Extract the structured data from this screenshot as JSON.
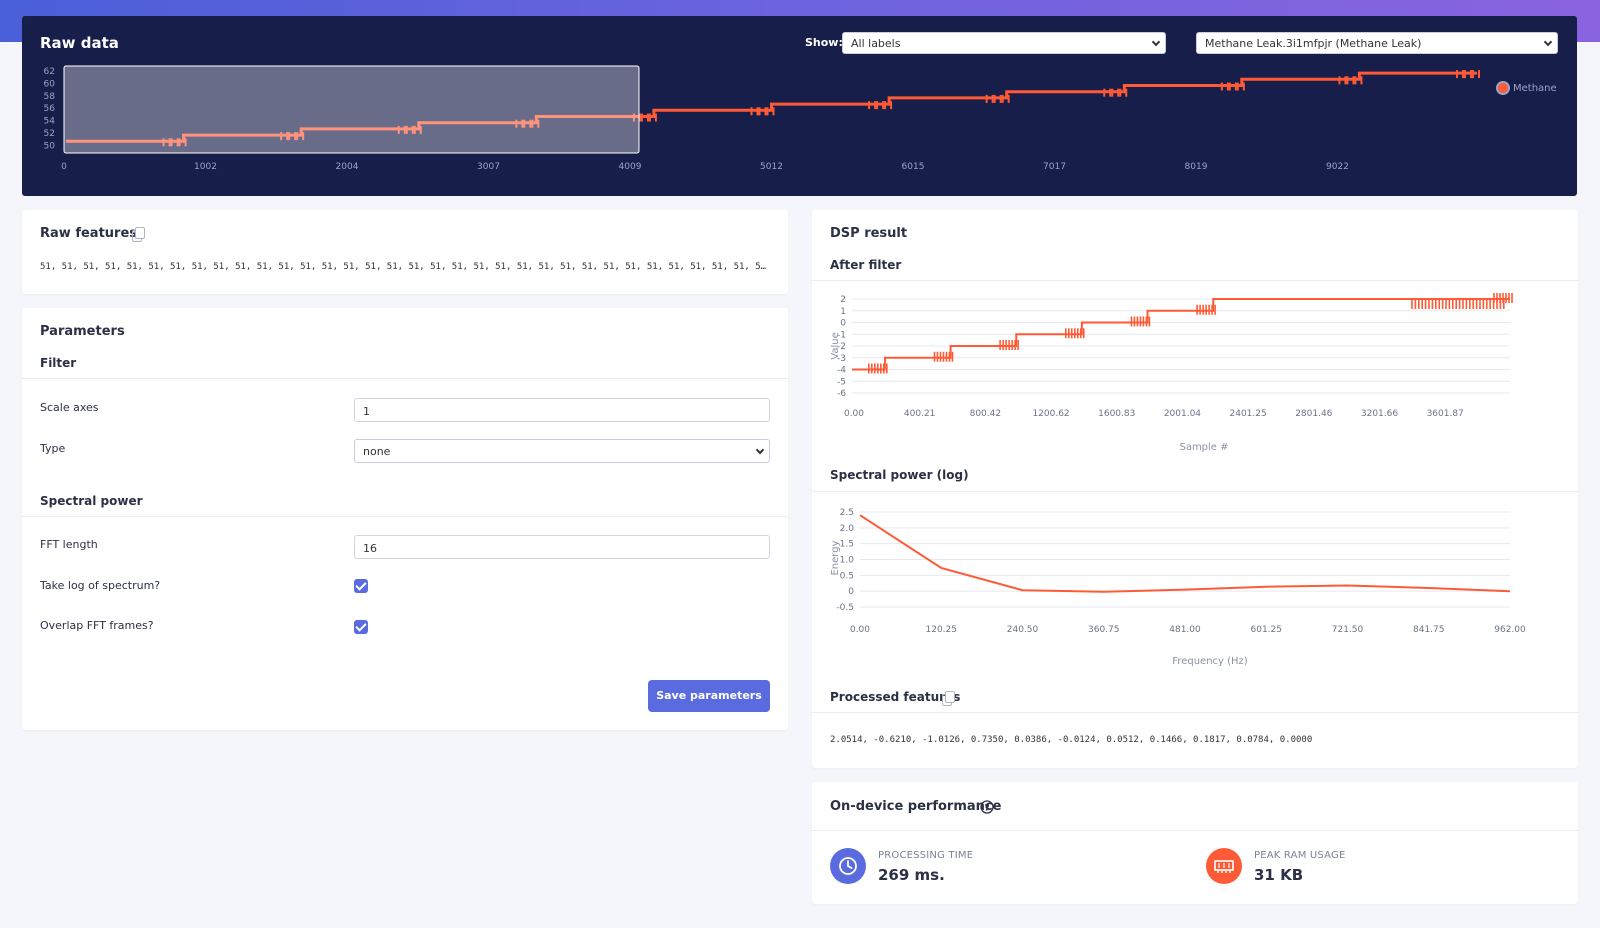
{
  "raw_data": {
    "title": "Raw data",
    "show_label": "Show:",
    "filter_select": "All labels",
    "sample_select": "Methane Leak.3i1mfpjr (Methane Leak)",
    "legend": "Methane",
    "series_color": "#ff5a36",
    "y_ticks": [
      "62",
      "60",
      "58",
      "56",
      "54",
      "52",
      "50"
    ],
    "x_ticks": [
      "0",
      "1002",
      "2004",
      "3007",
      "4009",
      "5012",
      "6015",
      "7017",
      "8019",
      "9022"
    ]
  },
  "raw_features": {
    "title": "Raw features",
    "values": "51, 51, 51, 51, 51, 51, 51, 51, 51, 51, 51, 51, 51, 51, 51, 51, 51, 51, 51, 51, 51, 51, 51, 51, 51, 51, 51, 51, 51, 51, 51, 51, 51, 5…"
  },
  "parameters": {
    "title": "Parameters",
    "filter_heading": "Filter",
    "scale_axes_label": "Scale axes",
    "scale_axes_value": "1",
    "type_label": "Type",
    "type_value": "none",
    "spectral_heading": "Spectral power",
    "fft_length_label": "FFT length",
    "fft_length_value": "16",
    "take_log_label": "Take log of spectrum?",
    "take_log_checked": true,
    "overlap_label": "Overlap FFT frames?",
    "overlap_checked": true,
    "save_button": "Save parameters"
  },
  "dsp_result": {
    "title": "DSP result",
    "after_filter_heading": "After filter",
    "spectral_heading": "Spectral power (log)",
    "processed_heading": "Processed features",
    "processed_values": "2.0514, -0.6210, -1.0126, 0.7350, 0.0386, -0.0124, 0.0512, 0.1466, 0.1817, 0.0784, 0.0000"
  },
  "chart_data": [
    {
      "type": "line",
      "title": "After filter",
      "xlabel": "Sample #",
      "ylabel": "Value",
      "x_ticks": [
        "0.00",
        "400.21",
        "800.42",
        "1200.62",
        "1600.83",
        "2001.04",
        "2401.25",
        "2801.46",
        "3201.66",
        "3601.87"
      ],
      "y_ticks": [
        "2",
        "1",
        "0",
        "-1",
        "-2",
        "-3",
        "-4",
        "-5",
        "-6"
      ],
      "ylim": [
        -6,
        2
      ],
      "xlim": [
        0,
        4009
      ],
      "x": [
        0,
        200,
        201,
        600,
        601,
        1000,
        1001,
        1400,
        1401,
        1800,
        1801,
        2200,
        2201,
        4009
      ],
      "y": [
        -4,
        -4,
        -3,
        -3,
        -2,
        -2,
        -1,
        -1,
        0,
        0,
        1,
        1,
        2,
        2
      ],
      "color": "#ff5a36"
    },
    {
      "type": "line",
      "title": "Spectral power (log)",
      "xlabel": "Frequency (Hz)",
      "ylabel": "Energy",
      "x_ticks": [
        "0.00",
        "120.25",
        "240.50",
        "360.75",
        "481.00",
        "601.25",
        "721.50",
        "841.75",
        "962.00"
      ],
      "y_ticks": [
        "2.5",
        "2.0",
        "1.5",
        "1.0",
        "0.5",
        "0",
        "-0.5"
      ],
      "ylim": [
        -0.5,
        2.5
      ],
      "xlim": [
        0,
        962
      ],
      "x": [
        0,
        120.25,
        240.5,
        360.75,
        481,
        601.25,
        721.5,
        841.75,
        962
      ],
      "y": [
        2.4,
        0.73,
        0.03,
        -0.02,
        0.05,
        0.14,
        0.18,
        0.1,
        0.0
      ],
      "color": "#ff5a36"
    }
  ],
  "performance": {
    "title": "On-device performance",
    "processing_label": "PROCESSING TIME",
    "processing_value": "269 ms.",
    "ram_label": "PEAK RAM USAGE",
    "ram_value": "31 KB",
    "processing_color": "#5a6be0",
    "ram_color": "#ff5a36"
  }
}
